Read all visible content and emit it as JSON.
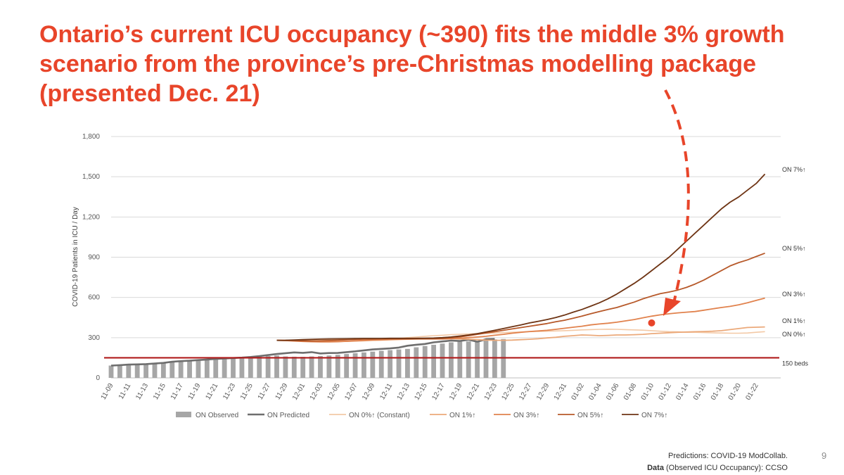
{
  "slide": {
    "title_lines": [
      "Ontario’s current ICU occupancy (~390) fits the middle 3% growth",
      "scenario from the province’s pre-Christmas modelling package",
      "(presented Dec. 21)"
    ],
    "footer_line1": "Predictions: COVID-19 ModCollab.",
    "footer_bold": "Data",
    "footer_line2_rest": " (Observed ICU Occupancy): CCSO",
    "page_number": "9"
  },
  "colors": {
    "title": "#e8452a",
    "observed": "#a6a6a6",
    "predicted": "#6e6e6e",
    "on0": "#f3c9a6",
    "on1": "#eba97a",
    "on3": "#e1824d",
    "on5": "#b7592a",
    "on7": "#6e3414",
    "beds": "#b01c1c",
    "arrow": "#e8452a"
  },
  "chart_data": {
    "type": "line",
    "ylabel": "COVID-19 Patients in ICU /  Day",
    "ylim": [
      0,
      1800
    ],
    "yticks": [
      0,
      300,
      600,
      900,
      1200,
      1500,
      1800
    ],
    "ytick_labels": [
      "0",
      "300",
      "600",
      "900",
      "1,200",
      "1,500",
      "1,800"
    ],
    "x_start": "11-09",
    "x_end": "01-23",
    "x_tick_labels": [
      "11-09",
      "11-11",
      "11-13",
      "11-15",
      "11-17",
      "11-19",
      "11-21",
      "11-23",
      "11-25",
      "11-27",
      "11-29",
      "12-01",
      "12-03",
      "12-05",
      "12-07",
      "12-09",
      "12-11",
      "12-13",
      "12-15",
      "12-17",
      "12-19",
      "12-21",
      "12-23",
      "12-25",
      "12-27",
      "12-29",
      "12-31",
      "01-02",
      "01-04",
      "01-06",
      "01-08",
      "01-10",
      "01-12",
      "01-14",
      "01-16",
      "01-18",
      "01-20",
      "01-22"
    ],
    "observed": {
      "name": "ON Observed",
      "values": [
        92,
        95,
        98,
        101,
        103,
        107,
        112,
        116,
        120,
        124,
        128,
        133,
        137,
        141,
        145,
        149,
        153,
        158,
        163,
        167,
        160,
        158,
        157,
        160,
        163,
        167,
        172,
        178,
        184,
        190,
        196,
        202,
        207,
        212,
        216,
        228,
        238,
        247,
        256,
        265,
        270,
        272,
        275,
        283,
        287,
        290
      ]
    },
    "predicted": {
      "name": "ON Predicted",
      "values": [
        92,
        95,
        99,
        101,
        103,
        107,
        112,
        120,
        125,
        128,
        133,
        137,
        141,
        145,
        148,
        151,
        156,
        162,
        170,
        178,
        184,
        190,
        187,
        192,
        182,
        185,
        186,
        192,
        198,
        205,
        212,
        216,
        220,
        226,
        240,
        247,
        253,
        265,
        272,
        278,
        275,
        285,
        270,
        288,
        290
      ]
    },
    "scenarios": [
      {
        "name": "ON 0%↑ (Constant)",
        "label": "ON 0%↑",
        "values": [
          280,
          281,
          280,
          282,
          282,
          283,
          284,
          285,
          285,
          286,
          287,
          288,
          290,
          292,
          295,
          300,
          305,
          310,
          315,
          318,
          322,
          325,
          328,
          330,
          332,
          335,
          338,
          340,
          342,
          345,
          347,
          348,
          350,
          352,
          355,
          358,
          360,
          362,
          363,
          362,
          360,
          358,
          356,
          352,
          348,
          345,
          343,
          340,
          340,
          338,
          336,
          335,
          333,
          333,
          335,
          340,
          345
        ]
      },
      {
        "name": "ON 1%↑",
        "label": "ON 1%↑",
        "values": [
          280,
          279,
          278,
          276,
          274,
          273,
          272,
          272,
          273,
          275,
          277,
          280,
          282,
          284,
          286,
          288,
          290,
          291,
          292,
          293,
          292,
          290,
          288,
          285,
          282,
          280,
          280,
          282,
          285,
          288,
          292,
          298,
          303,
          310,
          315,
          320,
          318,
          315,
          317,
          320,
          320,
          322,
          325,
          330,
          333,
          337,
          340,
          342,
          344,
          346,
          348,
          352,
          360,
          368,
          376,
          378,
          380
        ]
      },
      {
        "name": "ON 3%↑",
        "label": "ON 3%↑",
        "values": [
          280,
          278,
          275,
          272,
          270,
          268,
          268,
          270,
          273,
          276,
          280,
          283,
          285,
          287,
          288,
          289,
          290,
          290,
          290,
          290,
          292,
          296,
          300,
          305,
          310,
          318,
          325,
          333,
          340,
          346,
          350,
          355,
          362,
          370,
          378,
          385,
          395,
          402,
          408,
          415,
          425,
          435,
          448,
          460,
          470,
          478,
          485,
          490,
          495,
          505,
          515,
          525,
          533,
          545,
          560,
          578,
          595
        ]
      },
      {
        "name": "ON 5%↑",
        "label": "ON 5%↑",
        "values": [
          280,
          279,
          277,
          276,
          275,
          276,
          278,
          281,
          284,
          287,
          289,
          290,
          291,
          292,
          292,
          292,
          292,
          292,
          293,
          295,
          300,
          306,
          315,
          325,
          335,
          345,
          355,
          365,
          375,
          385,
          395,
          405,
          418,
          430,
          445,
          460,
          478,
          495,
          510,
          525,
          545,
          565,
          590,
          610,
          628,
          640,
          655,
          675,
          700,
          730,
          765,
          800,
          835,
          860,
          880,
          905,
          930
        ]
      },
      {
        "name": "ON 7%↑",
        "label": "ON 7%↑",
        "values": [
          280,
          281,
          283,
          285,
          287,
          289,
          290,
          291,
          292,
          293,
          294,
          294,
          294,
          295,
          295,
          295,
          295,
          296,
          297,
          300,
          305,
          312,
          320,
          330,
          342,
          355,
          368,
          382,
          395,
          410,
          422,
          435,
          450,
          468,
          490,
          510,
          535,
          560,
          590,
          625,
          665,
          705,
          750,
          800,
          850,
          900,
          960,
          1020,
          1080,
          1140,
          1200,
          1260,
          1310,
          1350,
          1400,
          1450,
          1520
        ]
      }
    ],
    "reference_line": {
      "name": "150 beds",
      "value": 150
    },
    "highlight_point": {
      "x": "01-10",
      "value": 410
    },
    "legend_position": "bottom"
  }
}
